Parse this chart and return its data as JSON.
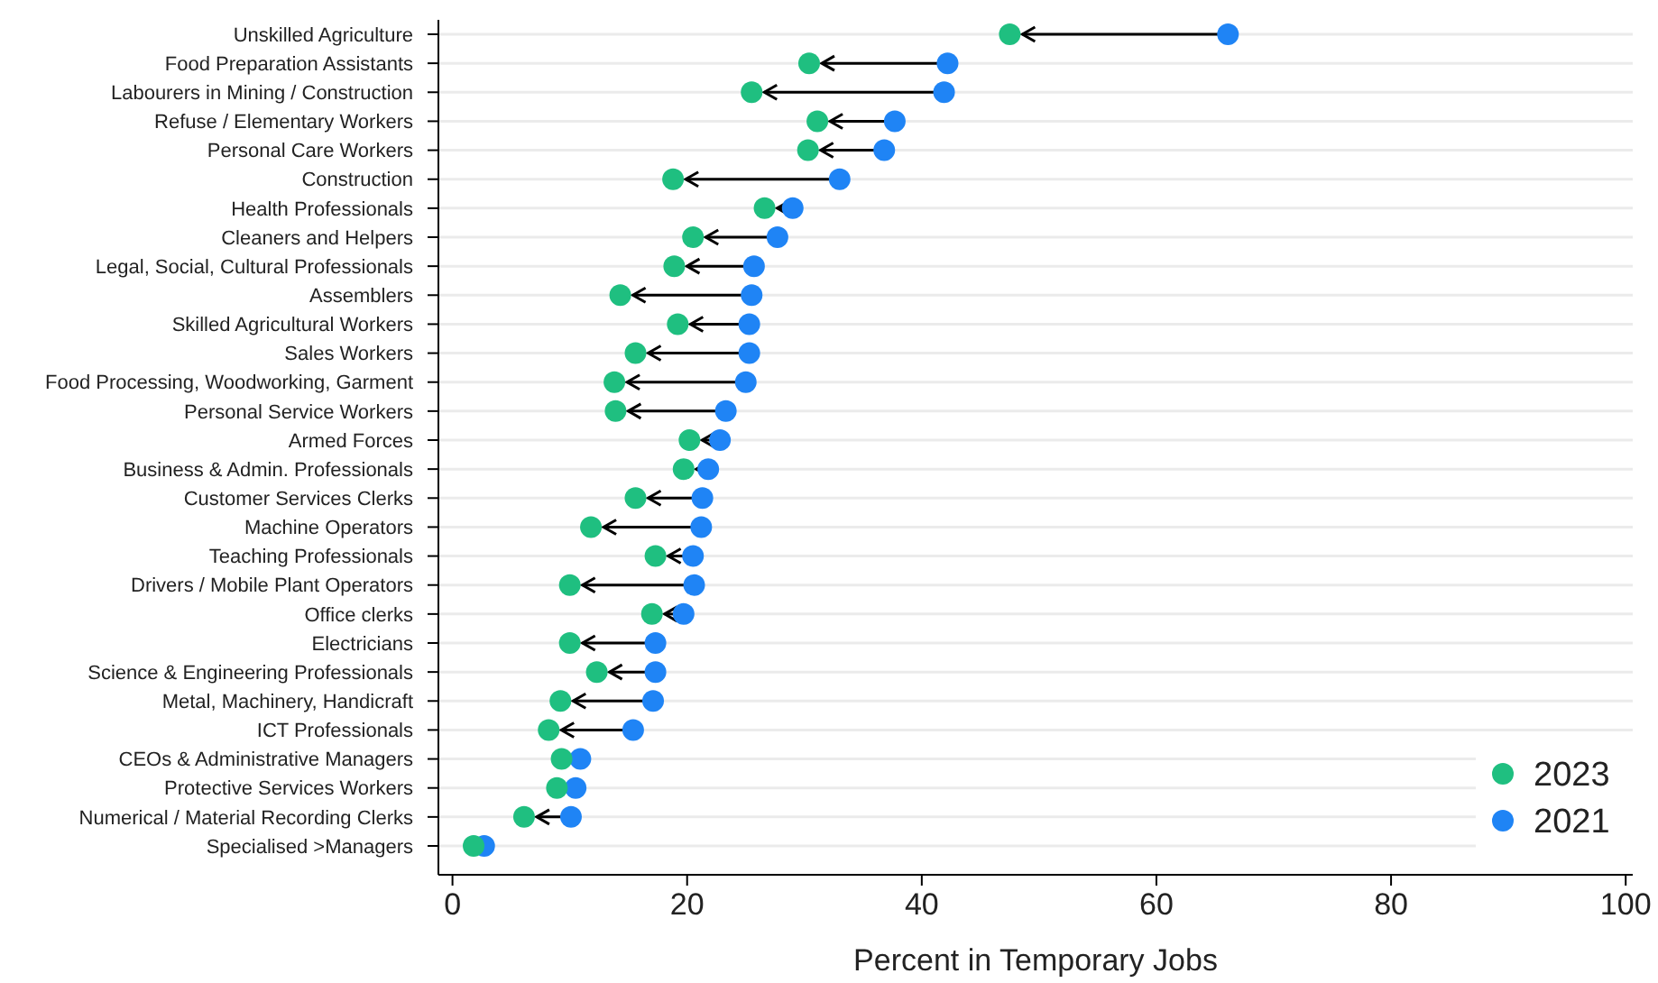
{
  "chart_data": {
    "type": "scatter",
    "orientation": "horizontal",
    "xlabel": "Percent in Temporary Jobs",
    "categories": [
      "Unskilled Agriculture",
      "Food Preparation Assistants",
      "Labourers in Mining / Construction",
      "Refuse / Elementary Workers",
      "Personal Care Workers",
      "Construction",
      "Health Professionals",
      "Cleaners and Helpers",
      "Legal, Social, Cultural Professionals",
      "Assemblers",
      "Skilled Agricultural Workers",
      "Sales Workers",
      "Food Processing, Woodworking, Garment",
      "Personal Service Workers",
      "Armed Forces",
      "Business & Admin. Professionals",
      "Customer Services Clerks",
      "Machine Operators",
      "Teaching Professionals",
      "Drivers / Mobile Plant Operators",
      "Office clerks",
      "Electricians",
      "Science & Engineering Professionals",
      "Metal, Machinery, Handicraft",
      "ICT Professionals",
      "CEOs & Administrative Managers",
      "Protective Services Workers",
      "Numerical / Material Recording Clerks",
      "Specialised >Managers"
    ],
    "series": [
      {
        "name": "2023",
        "color": "#1fbf80",
        "values": [
          47.5,
          30.4,
          25.5,
          31.1,
          30.3,
          18.8,
          26.6,
          20.5,
          18.9,
          14.3,
          19.2,
          15.6,
          13.8,
          13.9,
          20.2,
          19.7,
          15.6,
          11.8,
          17.3,
          10,
          17,
          10,
          12.3,
          9.2,
          8.2,
          9.3,
          8.9,
          6.1,
          1.8
        ]
      },
      {
        "name": "2021",
        "color": "#1f84f5",
        "values": [
          66.1,
          42.2,
          41.9,
          37.7,
          36.8,
          33,
          29,
          27.7,
          25.7,
          25.5,
          25.3,
          25.3,
          25,
          23.3,
          22.8,
          21.8,
          21.3,
          21.2,
          20.5,
          20.6,
          19.7,
          17.3,
          17.3,
          17.1,
          15.4,
          10.9,
          10.5,
          10.1,
          2.7
        ]
      }
    ],
    "xlim": [
      -1.2,
      100.6
    ],
    "xticks": [
      0,
      20,
      40,
      60,
      80,
      100
    ],
    "grid": "y",
    "legend": "bottom right",
    "marker": "circle"
  }
}
